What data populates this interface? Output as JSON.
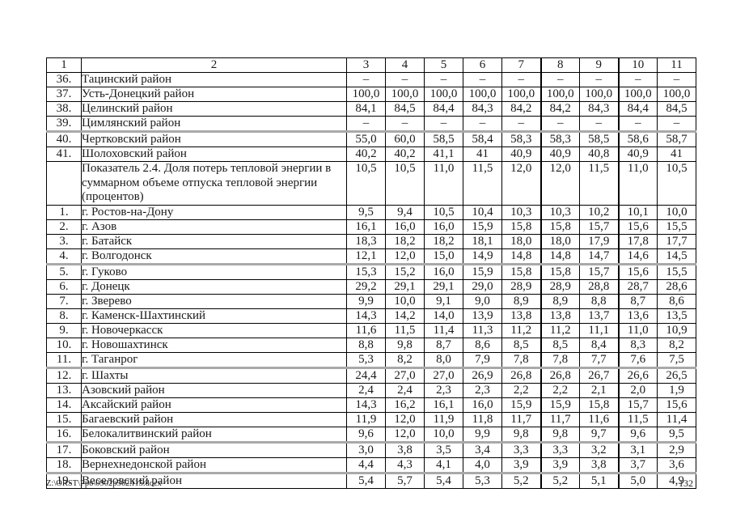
{
  "page": {
    "footer_path": "Z:\\ORST\\Ppo\\0902p562.f15.docx",
    "footer_page": "132"
  },
  "table": {
    "header": [
      "1",
      "2",
      "3",
      "4",
      "5",
      "6",
      "7",
      "8",
      "9",
      "10",
      "11"
    ],
    "rows": [
      {
        "num": "36.",
        "name": "Тацинский район",
        "values": [
          "–",
          "–",
          "–",
          "–",
          "–",
          "–",
          "–",
          "–",
          "–"
        ]
      },
      {
        "num": "37.",
        "name": "Усть-Донецкий район",
        "values": [
          "100,0",
          "100,0",
          "100,0",
          "100,0",
          "100,0",
          "100,0",
          "100,0",
          "100,0",
          "100,0"
        ]
      },
      {
        "num": "38.",
        "name": "Целинский район",
        "values": [
          "84,1",
          "84,5",
          "84,4",
          "84,3",
          "84,2",
          "84,2",
          "84,3",
          "84,4",
          "84,5"
        ]
      },
      {
        "num": "39.",
        "name": "Цимлянский район",
        "values": [
          "–",
          "–",
          "–",
          "–",
          "–",
          "–",
          "–",
          "–",
          "–"
        ]
      },
      {
        "num": "40.",
        "name": "Чертковский район",
        "values": [
          "55,0",
          "60,0",
          "58,5",
          "58,4",
          "58,3",
          "58,3",
          "58,5",
          "58,6",
          "58,7"
        ],
        "split": true
      },
      {
        "num": "41.",
        "name": "Шолоховский район",
        "values": [
          "40,2",
          "40,2",
          "41,1",
          "41",
          "40,9",
          "40,9",
          "40,8",
          "40,9",
          "41"
        ]
      },
      {
        "num": "",
        "name": "Показатель 2.4. Доля потерь тепловой энергии в суммарном объеме отпуска тепловой энергии (процентов)",
        "values": [
          "10,5",
          "10,5",
          "11,0",
          "11,5",
          "12,0",
          "12,0",
          "11,5",
          "11,0",
          "10,5"
        ],
        "tall": true
      },
      {
        "num": "1.",
        "name": "г. Ростов-на-Дону",
        "values": [
          "9,5",
          "9,4",
          "10,5",
          "10,4",
          "10,3",
          "10,3",
          "10,2",
          "10,1",
          "10,0"
        ]
      },
      {
        "num": "2.",
        "name": "г. Азов",
        "values": [
          "16,1",
          "16,0",
          "16,0",
          "15,9",
          "15,8",
          "15,8",
          "15,7",
          "15,6",
          "15,5"
        ]
      },
      {
        "num": "3.",
        "name": "г. Батайск",
        "values": [
          "18,3",
          "18,2",
          "18,2",
          "18,1",
          "18,0",
          "18,0",
          "17,9",
          "17,8",
          "17,7"
        ]
      },
      {
        "num": "4.",
        "name": "г. Волгодонск",
        "values": [
          "12,1",
          "12,0",
          "15,0",
          "14,9",
          "14,8",
          "14,8",
          "14,7",
          "14,6",
          "14,5"
        ]
      },
      {
        "num": "5.",
        "name": "г. Гуково",
        "values": [
          "15,3",
          "15,2",
          "16,0",
          "15,9",
          "15,8",
          "15,8",
          "15,7",
          "15,6",
          "15,5"
        ],
        "split": true
      },
      {
        "num": "6.",
        "name": "г. Донецк",
        "values": [
          "29,2",
          "29,1",
          "29,1",
          "29,0",
          "28,9",
          "28,9",
          "28,8",
          "28,7",
          "28,6"
        ]
      },
      {
        "num": "7.",
        "name": "г. Зверево",
        "values": [
          "9,9",
          "10,0",
          "9,1",
          "9,0",
          "8,9",
          "8,9",
          "8,8",
          "8,7",
          "8,6"
        ]
      },
      {
        "num": "8.",
        "name": "г. Каменск-Шахтинский",
        "values": [
          "14,3",
          "14,2",
          "14,0",
          "13,9",
          "13,8",
          "13,8",
          "13,7",
          "13,6",
          "13,5"
        ]
      },
      {
        "num": "9.",
        "name": "г. Новочеркасск",
        "values": [
          "11,6",
          "11,5",
          "11,4",
          "11,3",
          "11,2",
          "11,2",
          "11,1",
          "11,0",
          "10,9"
        ]
      },
      {
        "num": "10.",
        "name": "г. Новошахтинск",
        "values": [
          "8,8",
          "9,8",
          "8,7",
          "8,6",
          "8,5",
          "8,5",
          "8,4",
          "8,3",
          "8,2"
        ]
      },
      {
        "num": "11.",
        "name": "г. Таганрог",
        "values": [
          "5,3",
          "8,2",
          "8,0",
          "7,9",
          "7,8",
          "7,8",
          "7,7",
          "7,6",
          "7,5"
        ]
      },
      {
        "num": "12.",
        "name": "г. Шахты",
        "values": [
          "24,4",
          "27,0",
          "27,0",
          "26,9",
          "26,8",
          "26,8",
          "26,7",
          "26,6",
          "26,5"
        ],
        "split": true
      },
      {
        "num": "13.",
        "name": "Азовский район",
        "values": [
          "2,4",
          "2,4",
          "2,3",
          "2,3",
          "2,2",
          "2,2",
          "2,1",
          "2,0",
          "1,9"
        ]
      },
      {
        "num": "14.",
        "name": "Аксайский район",
        "values": [
          "14,3",
          "16,2",
          "16,1",
          "16,0",
          "15,9",
          "15,9",
          "15,8",
          "15,7",
          "15,6"
        ]
      },
      {
        "num": "15.",
        "name": "Багаевский район",
        "values": [
          "11,9",
          "12,0",
          "11,9",
          "11,8",
          "11,7",
          "11,7",
          "11,6",
          "11,5",
          "11,4"
        ]
      },
      {
        "num": "16.",
        "name": "Белокалитвинский район",
        "values": [
          "9,6",
          "12,0",
          "10,0",
          "9,9",
          "9,8",
          "9,8",
          "9,7",
          "9,6",
          "9,5"
        ]
      },
      {
        "num": "17.",
        "name": "Боковский район",
        "values": [
          "3,0",
          "3,8",
          "3,5",
          "3,4",
          "3,3",
          "3,3",
          "3,2",
          "3,1",
          "2,9"
        ],
        "split": true
      },
      {
        "num": "18.",
        "name": "Вернехнедонской район",
        "values": [
          "4,4",
          "4,3",
          "4,1",
          "4,0",
          "3,9",
          "3,9",
          "3,8",
          "3,7",
          "3,6"
        ]
      },
      {
        "num": "19.",
        "name": "Веселовский район",
        "values": [
          "5,4",
          "5,7",
          "5,4",
          "5,3",
          "5,2",
          "5,2",
          "5,1",
          "5,0",
          "4,9"
        ],
        "split": true
      }
    ]
  }
}
